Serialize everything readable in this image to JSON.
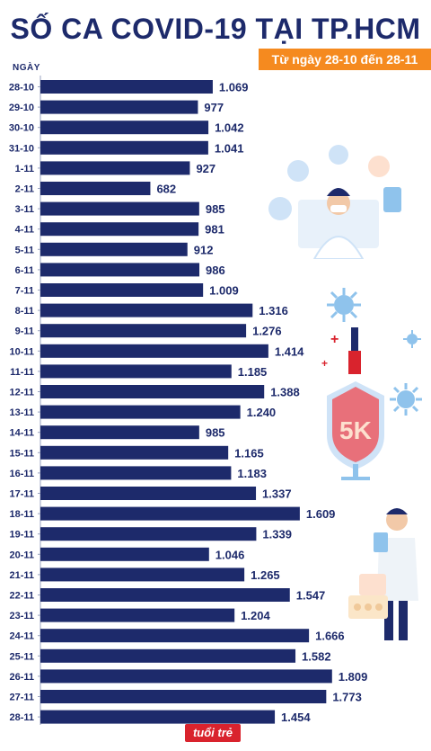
{
  "title": "SỐ CA COVID-19 TẠI TP.HCM",
  "subtitle": "Từ ngày 28-10 đến 28-11",
  "colors": {
    "bar": "#1d2a6b",
    "title": "#1d2a6b",
    "accent": "#f58a1f",
    "brand": "#d9232d"
  },
  "logo_text": "tuổi trẻ",
  "chart_data": {
    "type": "bar",
    "orientation": "horizontal",
    "ylabel": "NGÀY",
    "xlim": [
      0,
      2200
    ],
    "grid": false,
    "categories": [
      "28-10",
      "29-10",
      "30-10",
      "31-10",
      "1-11",
      "2-11",
      "3-11",
      "4-11",
      "5-11",
      "6-11",
      "7-11",
      "8-11",
      "9-11",
      "10-11",
      "11-11",
      "12-11",
      "13-11",
      "14-11",
      "15-11",
      "16-11",
      "17-11",
      "18-11",
      "19-11",
      "20-11",
      "21-11",
      "22-11",
      "23-11",
      "24-11",
      "25-11",
      "26-11",
      "27-11",
      "28-11"
    ],
    "values": [
      1069,
      977,
      1042,
      1041,
      927,
      682,
      985,
      981,
      912,
      986,
      1009,
      1316,
      1276,
      1414,
      1185,
      1388,
      1240,
      985,
      1165,
      1183,
      1337,
      1609,
      1339,
      1046,
      1265,
      1547,
      1204,
      1666,
      1582,
      1809,
      1773,
      1454
    ],
    "value_labels": [
      "1.069",
      "977",
      "1.042",
      "1.041",
      "927",
      "682",
      "985",
      "981",
      "912",
      "986",
      "1.009",
      "1.316",
      "1.276",
      "1.414",
      "1.185",
      "1.388",
      "1.240",
      "985",
      "1.165",
      "1.183",
      "1.337",
      "1.609",
      "1.339",
      "1.046",
      "1.265",
      "1.547",
      "1.204",
      "1.666",
      "1.582",
      "1.809",
      "1.773",
      "1.454"
    ]
  }
}
